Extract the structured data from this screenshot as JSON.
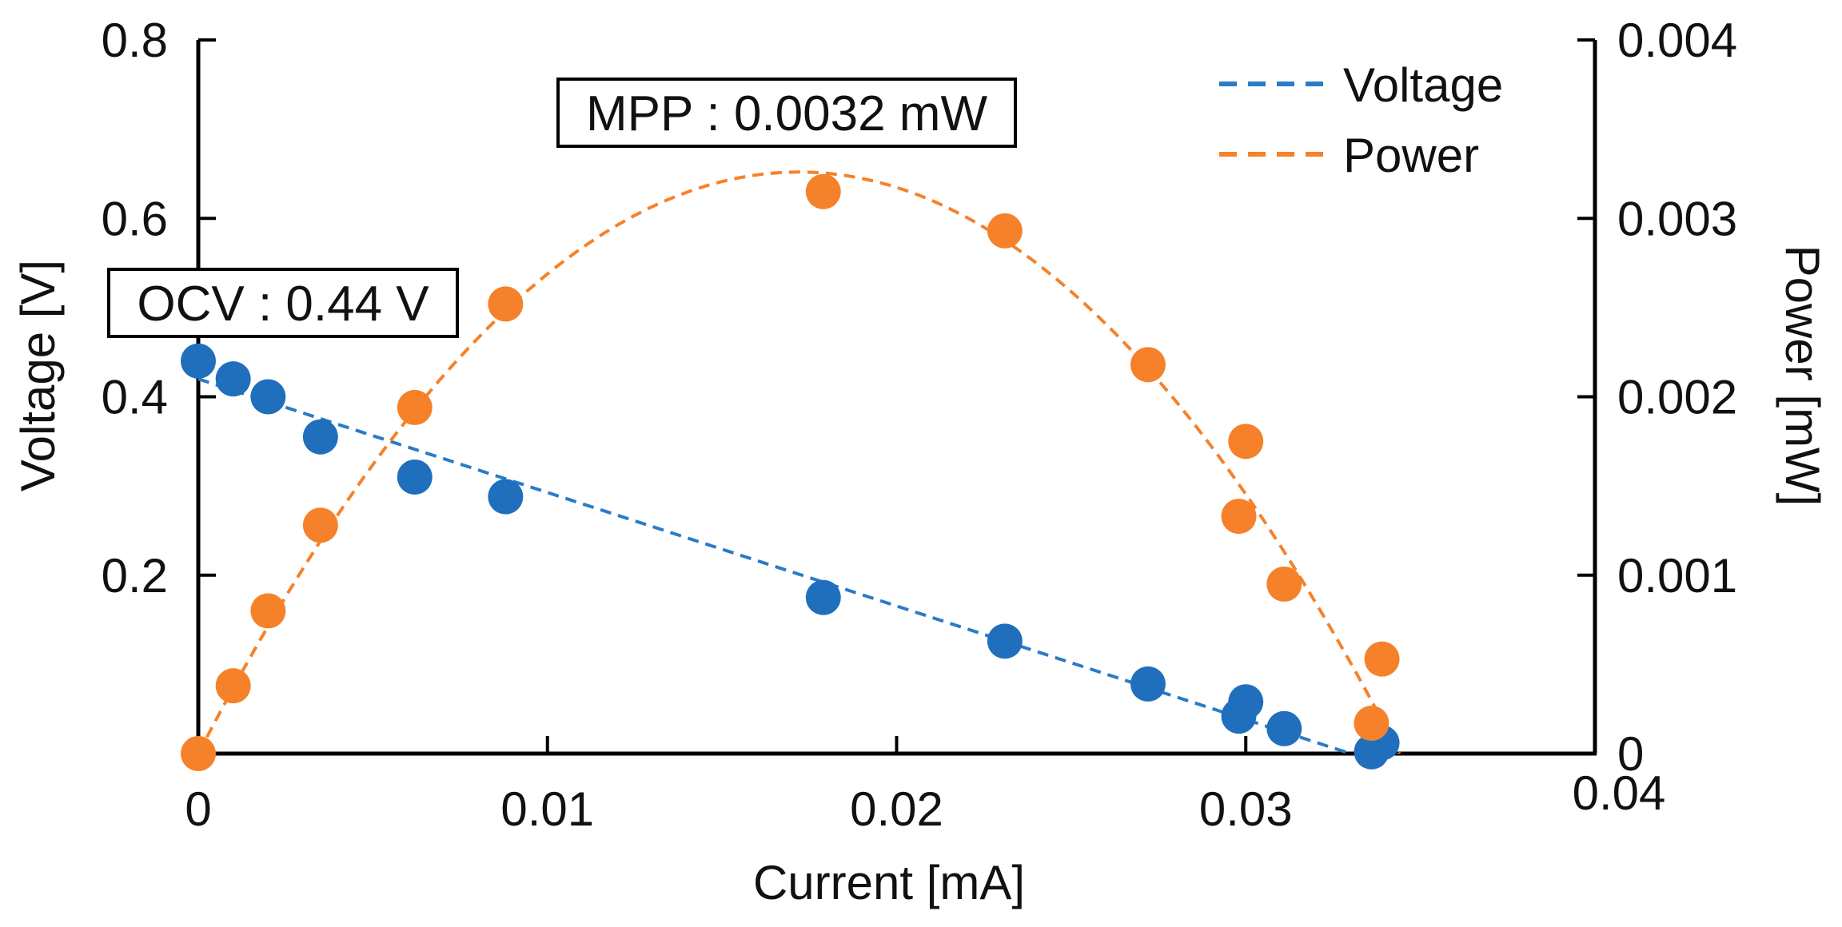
{
  "chart_data": {
    "type": "scatter",
    "title": "",
    "xlabel": "Current  [mA]",
    "ylabel_left": "Voltage  [V]",
    "ylabel_right": "Power  [mW]",
    "xlim": [
      0,
      0.04
    ],
    "ylim_left": [
      0,
      0.8
    ],
    "ylim_right": [
      0,
      0.004
    ],
    "x_ticks": [
      0,
      0.01,
      0.02,
      0.03,
      0.04
    ],
    "x_tick_labels": [
      "0",
      "0.01",
      "0.02",
      "0.03",
      "0.04"
    ],
    "y_left_ticks": [
      0.2,
      0.4,
      0.6,
      0.8
    ],
    "y_left_tick_labels": [
      "0.2",
      "0.4",
      "0.6",
      "0.8"
    ],
    "y_right_ticks": [
      0,
      0.001,
      0.002,
      0.003,
      0.004
    ],
    "y_right_tick_labels": [
      "0",
      "0.001",
      "0.002",
      "0.003",
      "0.004"
    ],
    "grid": false,
    "legend_position": "top-right",
    "series": [
      {
        "name": "Voltage",
        "axis": "left",
        "color": "#1f6fbd",
        "line_color": "#2a7bc8",
        "x": [
          0.0,
          0.001,
          0.002,
          0.0035,
          0.0062,
          0.0088,
          0.0179,
          0.0231,
          0.0272,
          0.0298,
          0.03,
          0.0311,
          0.0336,
          0.0339
        ],
        "values": [
          0.44,
          0.42,
          0.4,
          0.355,
          0.31,
          0.288,
          0.175,
          0.126,
          0.078,
          0.042,
          0.058,
          0.028,
          0.002,
          0.012
        ],
        "fit": {
          "x": [
            0,
            0.033
          ],
          "values": [
            0.42,
            0.0
          ]
        }
      },
      {
        "name": "Power",
        "axis": "right",
        "color": "#f5822a",
        "line_color": "#f5822a",
        "x": [
          0.0,
          0.001,
          0.002,
          0.0035,
          0.0062,
          0.0088,
          0.0179,
          0.0231,
          0.0272,
          0.0298,
          0.03,
          0.0311,
          0.0336,
          0.0339
        ],
        "values": [
          0.0,
          0.00038,
          0.0008,
          0.00128,
          0.00194,
          0.00252,
          0.00315,
          0.00293,
          0.00218,
          0.00133,
          0.00175,
          0.00095,
          0.00017,
          0.00053
        ],
        "fit": {
          "x": [
            0,
            0.0172,
            0.0344
          ],
          "values": [
            0.0,
            0.00326,
            0.0
          ]
        }
      }
    ],
    "annotations": [
      {
        "text": "MPP : 0.0032 mW",
        "anchor_x": 0.0174,
        "anchor_y_right": 0.00362
      },
      {
        "text": "OCV : 0.44 V",
        "anchor_x": 0.0037,
        "anchor_y_left": 0.505
      }
    ]
  }
}
